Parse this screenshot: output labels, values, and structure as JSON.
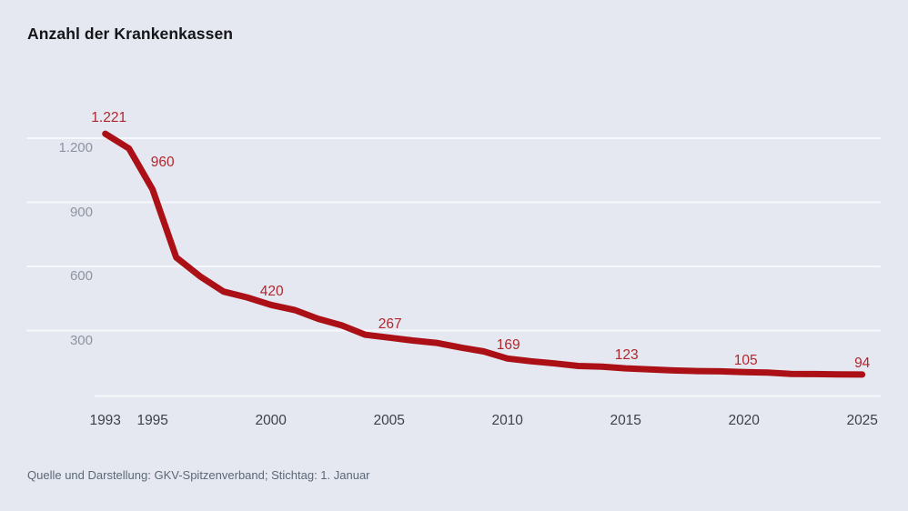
{
  "title": "Anzahl der Krankenkassen",
  "source": "Quelle und Darstellung: GKV-Spitzenverband; Stichtag: 1. Januar",
  "colors": {
    "background": "#e5e8f0",
    "gridline": "#f7f8fb",
    "line": "#ab1016",
    "data_label": "#b2262e",
    "y_tick": "#8d93a1",
    "x_tick": "#3d4149",
    "title": "#15161a",
    "source": "#5b6877"
  },
  "chart_data": {
    "type": "line",
    "title": "Anzahl der Krankenkassen",
    "xlabel": "",
    "ylabel": "",
    "grid": true,
    "legend_position": "none",
    "xlim": [
      1993,
      2025
    ],
    "ylim": [
      0,
      1280
    ],
    "line_color": "#ab1016",
    "label_color": "#b2262e",
    "x": [
      1993,
      1994,
      1995,
      1996,
      1997,
      1998,
      1999,
      2000,
      2001,
      2002,
      2003,
      2004,
      2005,
      2006,
      2007,
      2008,
      2009,
      2010,
      2011,
      2012,
      2013,
      2014,
      2015,
      2016,
      2017,
      2018,
      2019,
      2020,
      2021,
      2022,
      2023,
      2024,
      2025
    ],
    "values": [
      1221,
      1152,
      960,
      642,
      554,
      482,
      455,
      420,
      396,
      355,
      324,
      280,
      267,
      253,
      242,
      221,
      202,
      169,
      156,
      146,
      134,
      131,
      123,
      118,
      113,
      110,
      109,
      105,
      103,
      97,
      96,
      95,
      94
    ],
    "labeled_points": [
      {
        "x": 1993,
        "value": 1221,
        "label": "1.221"
      },
      {
        "x": 1995,
        "value": 960,
        "label": "960"
      },
      {
        "x": 2000,
        "value": 420,
        "label": "420"
      },
      {
        "x": 2005,
        "value": 267,
        "label": "267"
      },
      {
        "x": 2010,
        "value": 169,
        "label": "169"
      },
      {
        "x": 2015,
        "value": 123,
        "label": "123"
      },
      {
        "x": 2020,
        "value": 105,
        "label": "105"
      },
      {
        "x": 2025,
        "value": 94,
        "label": "94"
      }
    ],
    "y_ticks": [
      {
        "value": 1200,
        "label": "1.200"
      },
      {
        "value": 900,
        "label": "900"
      },
      {
        "value": 600,
        "label": "600"
      },
      {
        "value": 300,
        "label": "300"
      }
    ],
    "x_ticks": [
      {
        "x": 1993,
        "label": "1993"
      },
      {
        "x": 1995,
        "label": "1995"
      },
      {
        "x": 2000,
        "label": "2000"
      },
      {
        "x": 2005,
        "label": "2005"
      },
      {
        "x": 2010,
        "label": "2010"
      },
      {
        "x": 2015,
        "label": "2015"
      },
      {
        "x": 2020,
        "label": "2020"
      },
      {
        "x": 2025,
        "label": "2025"
      }
    ]
  }
}
